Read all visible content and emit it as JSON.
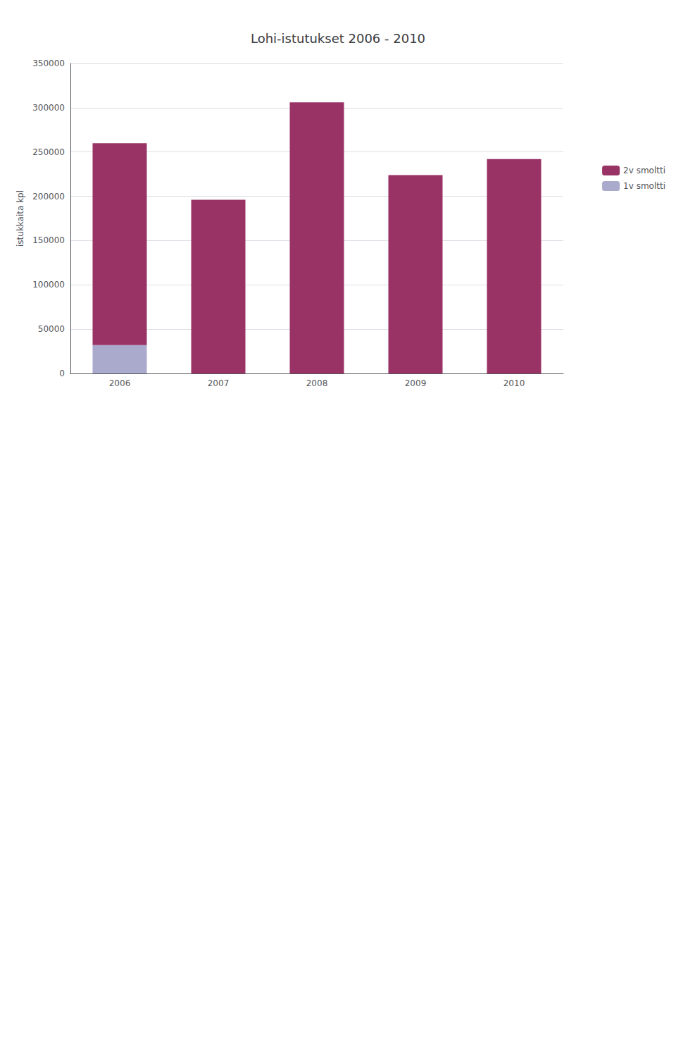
{
  "chart_data": {
    "type": "bar",
    "title": "Lohi-istutukset 2006 - 2010",
    "categories": [
      "2006",
      "2007",
      "2008",
      "2009",
      "2010"
    ],
    "series": [
      {
        "name": "1v smoltti",
        "color": "#aaaacc",
        "values": [
          32000,
          0,
          0,
          0,
          0
        ]
      },
      {
        "name": "2v smoltti",
        "color": "#993366",
        "values": [
          228000,
          196000,
          306000,
          224000,
          242000
        ]
      }
    ],
    "stacked": true,
    "ylabel": "istukkaita kpl",
    "ylim": [
      0,
      350000
    ],
    "yticks": [
      0,
      50000,
      100000,
      150000,
      200000,
      250000,
      300000,
      350000
    ],
    "grid": true,
    "legend": "right"
  }
}
